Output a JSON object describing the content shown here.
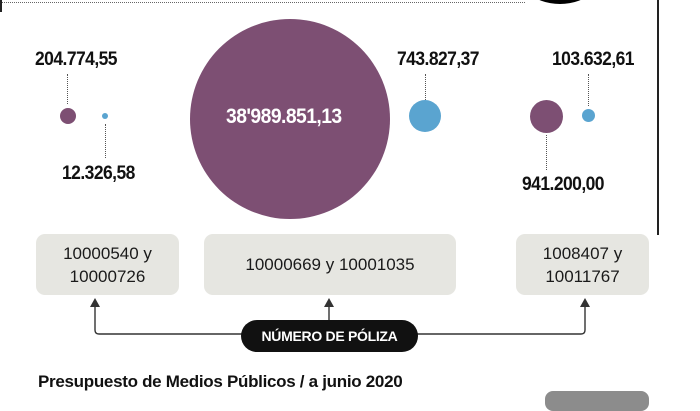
{
  "colors": {
    "purple": "#7d4f73",
    "blue": "#5aa4d0",
    "policy_box": "#e6e6e1",
    "pill": "#111111"
  },
  "bubbles": {
    "left_purple_value": "204.774,55",
    "left_blue_value": "12.326,58",
    "center_purple_value": "38'989.851,13",
    "center_blue_value": "743.827,37",
    "right_blue_value": "103.632,61",
    "right_purple_value": "941.200,00"
  },
  "policies": {
    "left_line1": "10000540 y",
    "left_line2": "10000726",
    "center": "10000669 y 10001035",
    "right_line1": "1008407 y",
    "right_line2": "10011767"
  },
  "pill_label": "NÚMERO DE PÓLIZA",
  "footer_title": "Presupuesto de Medios Públicos / a junio 2020"
}
